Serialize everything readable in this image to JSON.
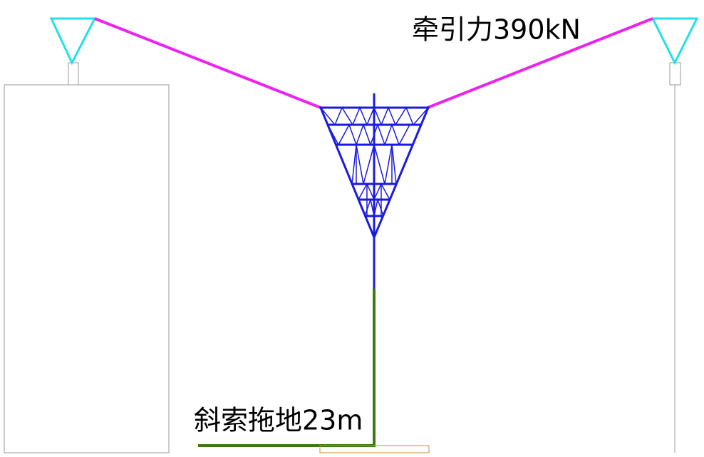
{
  "labels": {
    "traction": "牵引力390kN",
    "ground_cable": "斜索拖地23m"
  }
}
